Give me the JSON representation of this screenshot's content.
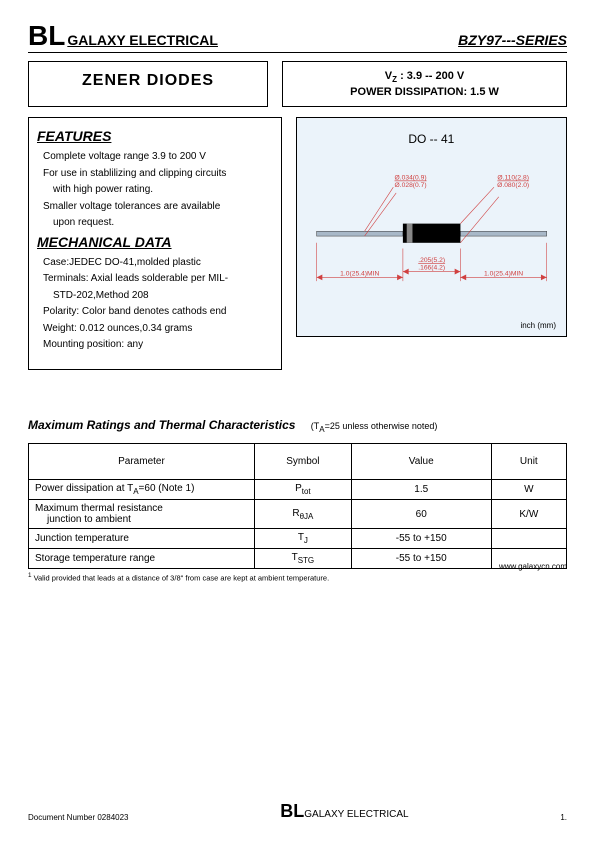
{
  "header": {
    "brand_big": "BL",
    "brand_sub": "GALAXY ELECTRICAL",
    "series": "BZY97---SERIES"
  },
  "title_box": "ZENER  DIODES",
  "spec_box": {
    "line1": "V",
    "line1_sub": "Z",
    "line1_rest": "   :   3.9 -- 200 V",
    "line2": "POWER  DISSIPATION:    1.5 W"
  },
  "features": {
    "title": "FEATURES",
    "items": [
      "Complete voltage range 3.9 to 200 V",
      "For use in stablilizing and clipping circuits",
      "with high power rating.",
      "Smaller voltage tolerances are available",
      "upon request."
    ],
    "indent_flags": [
      false,
      false,
      true,
      false,
      true
    ]
  },
  "mech": {
    "title": "MECHANICAL  DATA",
    "items": [
      "Case:JEDEC DO-41,molded plastic",
      "Terminals: Axial leads solderable per MIL-",
      "STD-202,Method 208",
      "Polarity: Color band denotes cathods end",
      "Weight: 0.012 ounces,0.34 grams",
      "Mounting position: any"
    ],
    "indent_flags": [
      false,
      false,
      true,
      false,
      false,
      false
    ]
  },
  "package": {
    "label": "DO -- 41",
    "units": "inch (mm)",
    "dims": {
      "lead_dia_top": "Ø.034(0.9)",
      "lead_dia_bot": "Ø.028(0.7)",
      "body_dia_top": "Ø.110(2.8)",
      "body_dia_bot": "Ø.080(2.0)",
      "lead_len": "1.0(25.4)MIN",
      "body_len_top": ".205(5.2)",
      "body_len_bot": ".166(4.2)"
    },
    "colors": {
      "body": "#000000",
      "band": "#888888",
      "lead": "#a8b8c8",
      "dim_line": "#d04040",
      "bg": "#ebf3fa"
    }
  },
  "ratings": {
    "title": "Maximum Ratings and Thermal Characteristics",
    "note": "(T",
    "note_sub": "A",
    "note_rest": "=25 unless otherwise noted)",
    "columns": [
      "Parameter",
      "Symbol",
      "Value",
      "Unit"
    ],
    "rows": [
      {
        "param": "Power dissipation at T",
        "param_sub": "A",
        "param_rest": "=60 (Note 1)",
        "symbol": "P",
        "symbol_sub": "tot",
        "value": "1.5",
        "unit": "W"
      },
      {
        "param": "Maximum thermal resistance",
        "param2": "junction to ambient",
        "symbol": "R",
        "symbol_sub": "θJA",
        "value": "60",
        "unit": "K/W"
      },
      {
        "param": "Junction temperature",
        "symbol": "T",
        "symbol_sub": "J",
        "value": "-55 to +150",
        "unit": ""
      },
      {
        "param": "Storage temperature range",
        "symbol": "T",
        "symbol_sub": "STG",
        "value": "-55 to +150",
        "unit": ""
      }
    ],
    "footnote_sup": "1",
    "footnote": "  Valid provided that leads at a distance of 3/8\" from case are kept at ambient temperature.",
    "website": "www.galaxycn.com"
  },
  "footer": {
    "doc": "Document Number 0284023",
    "brand_big": "BL",
    "brand_sub": "GALAXY ELECTRICAL",
    "page": "1."
  }
}
